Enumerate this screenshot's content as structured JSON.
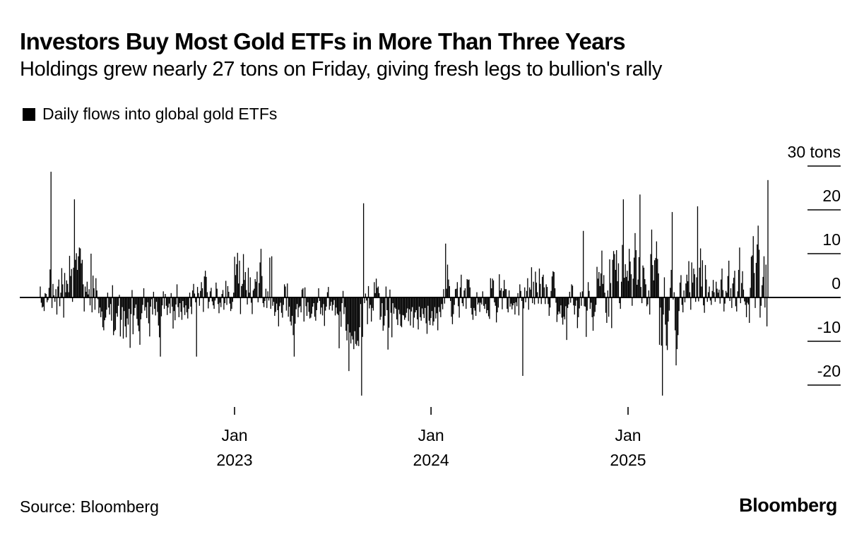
{
  "header": {
    "title": "Investors Buy Most Gold ETFs in More Than Three Years",
    "subtitle": "Holdings grew nearly 27 tons on Friday, giving fresh legs to bullion's rally"
  },
  "legend": {
    "label": "Daily flows into global gold ETFs",
    "color": "#000000"
  },
  "footer": {
    "source": "Source: Bloomberg",
    "brand": "Bloomberg"
  },
  "chart_data": {
    "type": "bar",
    "title": "Investors Buy Most Gold ETFs in More Than Three Years",
    "subtitle": "Holdings grew nearly 27 tons on Friday, giving fresh legs to bullion's rally",
    "xlabel": "",
    "ylabel": "tons",
    "ylim": [
      -20,
      30
    ],
    "grid": false,
    "legend_position": "top-left",
    "y_axis_side": "right",
    "y_ticks": [
      30,
      20,
      10,
      0,
      -10,
      -20
    ],
    "y_tick_labels": [
      "30 tons",
      "20",
      "10",
      "0",
      "-10",
      "-20"
    ],
    "x_ticks": [
      {
        "label_line1": "Jan",
        "label_line2": "2023",
        "date": "2023-01-01"
      },
      {
        "label_line1": "Jan",
        "label_line2": "2024",
        "date": "2024-01-01"
      },
      {
        "label_line1": "Jan",
        "label_line2": "2025",
        "date": "2025-01-01"
      }
    ],
    "x_range": [
      "2022-01-03",
      "2025-09-19"
    ],
    "series": [
      {
        "name": "Daily flows into global gold ETFs",
        "color": "#000000",
        "note": "daily values sampled approximately every second trading day",
        "values": [
          2.5,
          -1.2,
          -2.3,
          -2.1,
          -3.1,
          1.0,
          0.8,
          -1.1,
          -0.6,
          2.2,
          6.4,
          28.7,
          -2.4,
          3.1,
          0.5,
          -1.0,
          1.9,
          -3.9,
          2.5,
          4.1,
          -2.0,
          1.1,
          6.7,
          3.0,
          -4.6,
          5.6,
          1.2,
          3.9,
          3.1,
          1.2,
          9.5,
          4.9,
          6.5,
          -1.0,
          6.8,
          22.4,
          8.6,
          10.1,
          6.3,
          9.4,
          11.4,
          11.2,
          7.8,
          8.6,
          3.0,
          -3.2,
          2.5,
          1.3,
          3.6,
          0.7,
          1.9,
          -1.8,
          10.0,
          -3.4,
          5.0,
          2.1,
          -2.8,
          4.4,
          1.6,
          -0.4,
          -3.6,
          -2.3,
          -4.5,
          -3.2,
          -6.8,
          -7.5,
          -5.2,
          -4.6,
          -2.8,
          1.1,
          -2.3,
          -3.9,
          -1.5,
          -5.3,
          2.8,
          -8.6,
          -7.7,
          -7.4,
          -3.6,
          -4.4,
          -1.9,
          0.6,
          -8.9,
          -5.1,
          -2.2,
          -9.4,
          -3.1,
          -6.6,
          -9.1,
          -4.8,
          -6.2,
          -2.6,
          -11.5,
          -3.8,
          1.7,
          -8.4,
          -4.1,
          -2.4,
          -1.6,
          -4.9,
          -6.4,
          -7.7,
          -10.8,
          -5.0,
          -3.6,
          -1.7,
          2.1,
          -3.0,
          -2.2,
          -4.7,
          -1.1,
          -5.9,
          -8.9,
          -2.1,
          -0.4,
          -3.9,
          1.3,
          -2.6,
          -4.1,
          -1.0,
          -3.3,
          -6.4,
          -9.1,
          -13.5,
          -4.3,
          -1.8,
          1.4,
          -2.6,
          0.8,
          -1.9,
          -4.0,
          -2.3,
          -1.4,
          -3.6,
          1.0,
          -2.1,
          -7.1,
          -3.1,
          -5.2,
          -1.6,
          3.0,
          -2.2,
          -4.5,
          -1.3,
          -3.3,
          -5.1,
          -0.8,
          -2.3,
          -4.0,
          -1.8,
          -3.4,
          -4.8,
          -2.6,
          1.1,
          -2.1,
          -3.8,
          1.6,
          3.1,
          0.9,
          -1.1,
          -13.5,
          2.4,
          1.0,
          -1.9,
          1.5,
          3.5,
          2.1,
          -3.3,
          4.8,
          6.1,
          4.7,
          1.2,
          -2.5,
          -1.0,
          1.4,
          2.2,
          -0.9,
          -1.8,
          -2.6,
          -0.7,
          3.4,
          2.0,
          -1.5,
          -3.6,
          -1.2,
          -2.2,
          0.8,
          1.7,
          -2.8,
          -1.3,
          3.8,
          -1.7,
          2.6,
          1.3,
          -1.4,
          -3.1,
          -2.6,
          -1.0,
          1.1,
          9.3,
          5.1,
          7.6,
          10.2,
          3.2,
          8.4,
          -3.8,
          2.6,
          3.1,
          9.9,
          4.0,
          5.8,
          1.7,
          -1.6,
          6.8,
          1.1,
          4.6,
          -1.2,
          -3.8,
          1.6,
          2.0,
          4.2,
          3.6,
          5.9,
          -1.1,
          3.3,
          8.0,
          11.1,
          4.9,
          -1.3,
          -2.2,
          -0.8,
          2.0,
          -2.4,
          1.4,
          -0.7,
          9.1,
          -2.6,
          9.4,
          -1.9,
          -1.0,
          -4.2,
          -3.3,
          -1.4,
          -2.9,
          -6.6,
          -2.0,
          -1.2,
          -3.5,
          -4.6,
          -1.7,
          3.0,
          2.5,
          -3.0,
          3.2,
          -4.4,
          -2.1,
          -5.5,
          -6.4,
          -4.2,
          -8.6,
          -13.5,
          -6.0,
          -2.7,
          -1.5,
          -4.5,
          -2.3,
          -2.0,
          -3.4,
          1.8,
          2.1,
          -5.5,
          2.3,
          -2.0,
          -4.2,
          -1.1,
          -3.3,
          -4.8,
          -4.6,
          -3.7,
          -2.1,
          -1.3,
          -4.4,
          -5.3,
          -2.9,
          -1.2,
          2.1,
          -0.8,
          -3.8,
          -2.3,
          -4.1,
          -1.5,
          -6.5,
          -3.0,
          -2.1,
          1.2,
          2.4,
          -2.8,
          -1.9,
          -1.0,
          -3.0,
          -1.7,
          -0.6,
          -4.1,
          -2.3,
          -3.7,
          -4.0,
          -11.6,
          -3.2,
          -6.7,
          -1.3,
          1.5,
          -3.8,
          -2.2,
          -7.6,
          -9.8,
          -6.1,
          -16.8,
          -8.0,
          -10.5,
          -8.8,
          -9.6,
          -11.8,
          -7.7,
          -10.6,
          -11.0,
          -9.9,
          -11.1,
          -6.8,
          -1.5,
          -22.4,
          -9.0,
          21.5,
          -1.3,
          0.9,
          -0.7,
          -6.1,
          2.6,
          -2.5,
          -1.7,
          -5.5,
          -2.4,
          -3.0,
          3.5,
          1.0,
          4.3,
          2.2,
          2.5,
          1.0,
          -5.1,
          -4.4,
          -1.3,
          -7.6,
          -6.4,
          -4.2,
          2.5,
          -2.9,
          -11.9,
          -6.9,
          1.8,
          -3.5,
          -9.1,
          -1.3,
          -3.7,
          -2.3,
          -2.6,
          -5.0,
          -6.3,
          -2.8,
          -3.8,
          -6.5,
          -6.8,
          -4.0,
          -4.1,
          -5.1,
          -4.6,
          -3.5,
          -2.5,
          -5.4,
          -2.7,
          -6.4,
          -3.2,
          -2.2,
          -6.9,
          -4.6,
          -3.4,
          -2.9,
          -5.0,
          -7.3,
          -2.1,
          -4.5,
          -5.3,
          -2.5,
          -3.8,
          -4.7,
          -2.4,
          -5.9,
          -8.3,
          -1.9,
          -5.3,
          -6.3,
          -4.7,
          -3.1,
          -6.4,
          -5.5,
          -2.2,
          -4.8,
          -3.6,
          -7.5,
          -2.2,
          -3.3,
          -4.5,
          -1.5,
          -2.7,
          1.9,
          -1.4,
          12.3,
          2.0,
          7.5,
          4.1,
          2.6,
          -0.8,
          -4.4,
          -6.1,
          -3.8,
          -1.7,
          1.9,
          2.0,
          3.5,
          -2.0,
          -4.6,
          2.3,
          5.2,
          -1.3,
          -2.0,
          1.6,
          2.1,
          -2.6,
          4.2,
          4.0,
          4.1,
          2.3,
          -2.4,
          -3.9,
          -5.1,
          -2.4,
          -3.0,
          -4.2,
          1.2,
          -1.6,
          -1.2,
          -3.3,
          -1.2,
          -1.6,
          1.4,
          -1.9,
          -2.6,
          -1.5,
          -3.6,
          -2.9,
          -4.3,
          -4.9,
          4.4,
          2.1,
          4.3,
          3.9,
          -1.1,
          -1.9,
          -5.7,
          -3.4,
          -2.3,
          5.3,
          1.6,
          2.1,
          -2.7,
          1.5,
          4.0,
          1.9,
          1.9,
          -2.6,
          -3.4,
          1.6,
          -2.1,
          -1.4,
          -2.7,
          -1.8,
          -1.3,
          -3.9,
          -1.1,
          -2.0,
          1.0,
          -4.1,
          3.0,
          1.5,
          -0.8,
          -17.9,
          -2.5,
          2.3,
          -1.1,
          1.5,
          4.4,
          -2.8,
          2.3,
          1.8,
          6.9,
          -1.3,
          3.6,
          -1.6,
          5.9,
          3.4,
          1.2,
          -1.4,
          6.6,
          3.1,
          -1.5,
          4.7,
          5.2,
          2.3,
          -1.5,
          3.0,
          2.4,
          -1.5,
          -4.2,
          -2.3,
          1.5,
          4.8,
          6.0,
          5.8,
          2.1,
          -1.2,
          -5.6,
          -3.9,
          -3.2,
          -3.7,
          -1.8,
          -4.6,
          -6.2,
          -4.4,
          -5.0,
          -2.0,
          -9.7,
          -2.4,
          -1.6,
          1.3,
          -1.2,
          3.0,
          2.7,
          -1.8,
          -3.9,
          -1.9,
          -0.7,
          -7.0,
          -4.5,
          -2.5,
          1.2,
          -1.9,
          1.4,
          15.2,
          -2.0,
          -2.1,
          -9.0,
          -3.0,
          3.5,
          1.5,
          -2.6,
          -1.2,
          -4.5,
          -7.6,
          -4.3,
          -3.3,
          -1.7,
          7.0,
          4.3,
          5.8,
          2.6,
          5.5,
          10.7,
          3.1,
          5.1,
          1.1,
          -3.5,
          -5.8,
          1.6,
          -4.4,
          8.7,
          3.3,
          -7.0,
          8.6,
          10.6,
          9.9,
          6.3,
          10.8,
          3.7,
          7.8,
          -1.3,
          -2.6,
          3.6,
          12.0,
          22.4,
          4.5,
          7.6,
          4.7,
          6.1,
          3.8,
          11.1,
          8.2,
          5.3,
          -1.9,
          4.3,
          9.1,
          14.7,
          10.8,
          2.9,
          4.1,
          9.2,
          23.5,
          2.4,
          -1.3,
          7.3,
          6.8,
          4.2,
          3.0,
          -2.0,
          -1.6,
          1.6,
          -3.9,
          9.9,
          15.5,
          7.4,
          3.9,
          8.5,
          9.0,
          12.8,
          8.8,
          5.5,
          -10.8,
          -2.3,
          -11.0,
          -22.4,
          -3.9,
          4.6,
          -6.2,
          -11.0,
          -12.0,
          -5.5,
          -3.0,
          2.2,
          6.3,
          19.5,
          -0.5,
          1.2,
          -7.5,
          -15.5,
          -11.8,
          -8.6,
          -3.1,
          3.4,
          5.1,
          -1.7,
          -3.4,
          1.6,
          -1.1,
          3.2,
          5.2,
          3.7,
          8.3,
          1.2,
          -2.8,
          8.0,
          3.4,
          6.6,
          5.3,
          -1.0,
          4.6,
          20.8,
          -0.9,
          6.8,
          11.2,
          2.5,
          8.5,
          -1.8,
          -3.5,
          7.4,
          4.1,
          -1.0,
          1.2,
          2.5,
          -0.7,
          -1.7,
          1.5,
          4.0,
          1.2,
          -1.0,
          3.6,
          2.0,
          1.1,
          1.8,
          -1.4,
          4.1,
          6.6,
          1.7,
          -3.2,
          -1.4,
          1.5,
          1.1,
          4.9,
          8.4,
          -0.8,
          2.1,
          -2.4,
          3.2,
          4.5,
          6.1,
          -2.0,
          -3.2,
          1.4,
          6.3,
          11.4,
          -1.3,
          3.3,
          6.0,
          1.8,
          -0.9,
          -1.7,
          -4.5,
          -1.2,
          -1.6,
          -5.8,
          2.2,
          9.3,
          9.6,
          14.0,
          5.6,
          -2.4,
          7.9,
          12.1,
          16.4,
          10.9,
          -4.6,
          -1.9,
          2.8,
          4.7,
          9.4,
          -2.3,
          7.5,
          -6.6,
          26.8
        ]
      }
    ]
  }
}
